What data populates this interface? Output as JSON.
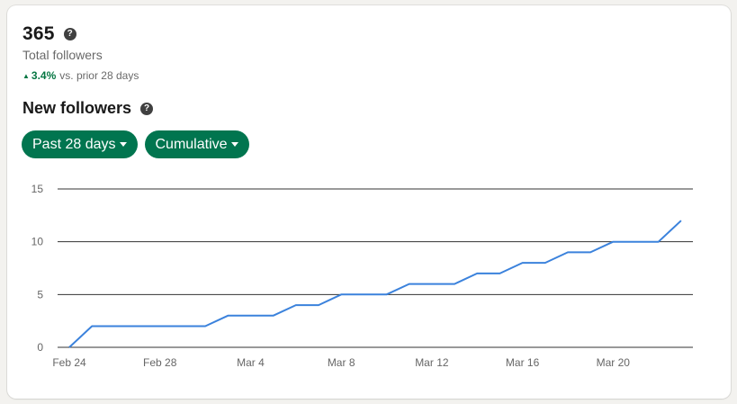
{
  "summary": {
    "total_value": "365",
    "total_label": "Total followers",
    "trend_arrow": "▲",
    "trend_percent": "3.4%",
    "trend_text": "vs. prior 28 days",
    "help_icon": "question-circle-icon"
  },
  "section": {
    "title": "New followers",
    "help_icon": "question-circle-icon"
  },
  "filters": {
    "time_range": {
      "label": "Past 28 days",
      "icon": "caret-down-icon"
    },
    "mode": {
      "label": "Cumulative",
      "icon": "caret-down-icon"
    }
  },
  "colors": {
    "accent_green": "#01754f",
    "trend_green": "#057642",
    "line_blue": "#3b82dc",
    "grid": "#333333"
  },
  "chart_data": {
    "type": "line",
    "title": "New followers",
    "xlabel": "",
    "ylabel": "",
    "ylim": [
      0,
      15
    ],
    "yticks": [
      0,
      5,
      10,
      15
    ],
    "xtick_labels": [
      "Feb 24",
      "Feb 28",
      "Mar 4",
      "Mar 8",
      "Mar 12",
      "Mar 16",
      "Mar 20"
    ],
    "grid": true,
    "legend": null,
    "x": [
      "Feb 24",
      "Feb 25",
      "Feb 26",
      "Feb 27",
      "Feb 28",
      "Mar 1",
      "Mar 2",
      "Mar 3",
      "Mar 4",
      "Mar 5",
      "Mar 6",
      "Mar 7",
      "Mar 8",
      "Mar 9",
      "Mar 10",
      "Mar 11",
      "Mar 12",
      "Mar 13",
      "Mar 14",
      "Mar 15",
      "Mar 16",
      "Mar 17",
      "Mar 18",
      "Mar 19",
      "Mar 20",
      "Mar 21",
      "Mar 22",
      "Mar 23"
    ],
    "series": [
      {
        "name": "Cumulative new followers",
        "values": [
          0,
          2,
          2,
          2,
          2,
          2,
          2,
          3,
          3,
          3,
          4,
          4,
          5,
          5,
          5,
          6,
          6,
          6,
          7,
          7,
          8,
          8,
          9,
          9,
          10,
          10,
          10,
          12
        ]
      }
    ]
  }
}
